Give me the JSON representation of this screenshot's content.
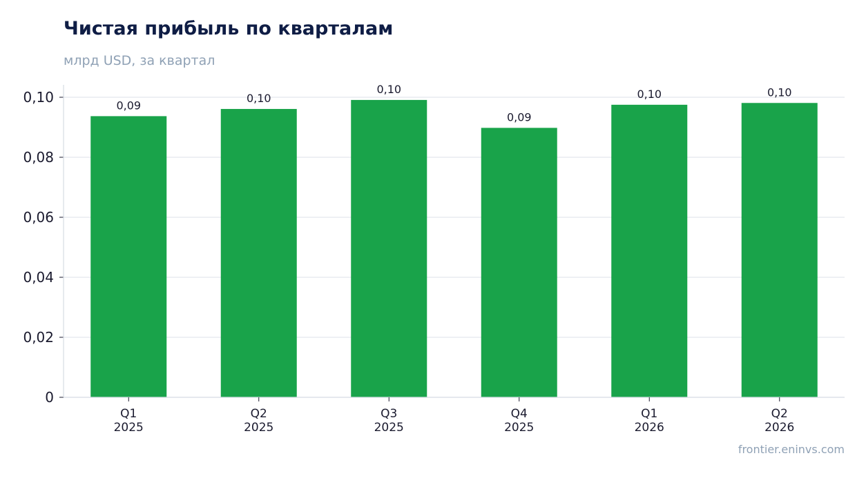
{
  "header": {
    "title": "Чистая прибыль по кварталам",
    "subtitle": "млрд USD, за квартал"
  },
  "footer": {
    "source": "frontier.eninvs.com"
  },
  "colors": {
    "bar": "#19a34a",
    "grid": "#e4e8ee",
    "axis": "#d5dbe3",
    "tick_text": "#1a1a2e",
    "title": "#0f1d45",
    "subtitle": "#8fa1b5"
  },
  "chart_data": {
    "type": "bar",
    "title": "Чистая прибыль по кварталам",
    "subtitle": "млрд USD, за квартал",
    "categories": [
      [
        "Q1",
        "2025"
      ],
      [
        "Q2",
        "2025"
      ],
      [
        "Q3",
        "2025"
      ],
      [
        "Q4",
        "2025"
      ],
      [
        "Q1",
        "2026"
      ],
      [
        "Q2",
        "2026"
      ]
    ],
    "values": [
      0.0937,
      0.0961,
      0.0991,
      0.0898,
      0.0975,
      0.0981
    ],
    "data_labels": [
      "0,09",
      "0,10",
      "0,10",
      "0,09",
      "0,10",
      "0,10"
    ],
    "ylim": [
      0,
      0.104
    ],
    "yticks": [
      0,
      0.02,
      0.04,
      0.06,
      0.08,
      0.1
    ],
    "ytick_labels": [
      "0",
      "0,02",
      "0,04",
      "0,06",
      "0,08",
      "0,10"
    ],
    "grid": true,
    "legend": "none"
  }
}
